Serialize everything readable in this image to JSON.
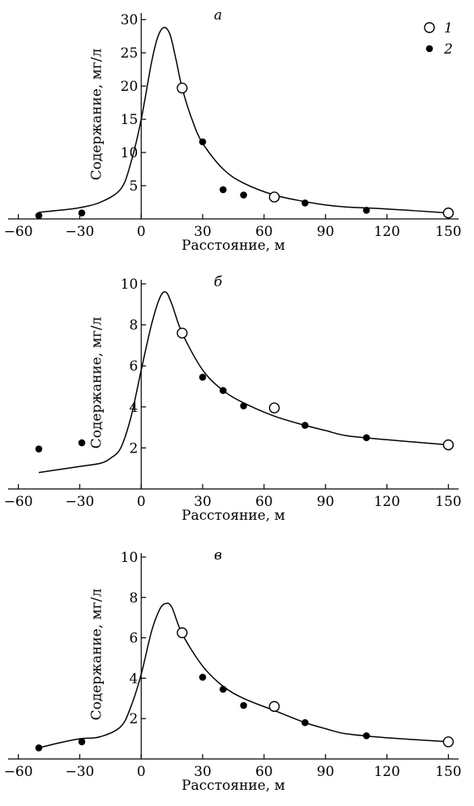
{
  "chart_data": [
    {
      "type": "line",
      "panel_label": "а",
      "xlabel": "Расстояние, м",
      "ylabel": "Содержание, мг/л",
      "xlim": [
        -65,
        155
      ],
      "ylim": [
        0,
        31
      ],
      "xticks": [
        -60,
        -30,
        0,
        30,
        60,
        90,
        120,
        150
      ],
      "xticklabels": [
        "−60",
        "−30",
        "0",
        "30",
        "60",
        "90",
        "120",
        "150"
      ],
      "yticks": [
        5,
        10,
        15,
        20,
        25,
        30
      ],
      "yticklabels": [
        "5",
        "10",
        "15",
        "20",
        "25",
        "30"
      ],
      "legend": [
        {
          "marker": "open-circle",
          "label": "1"
        },
        {
          "marker": "filled-circle",
          "label": "2"
        }
      ],
      "legend_position": "top-right",
      "series": [
        {
          "marker": "open-circle",
          "label": "1",
          "x": [
            20,
            65,
            150
          ],
          "y": [
            19.7,
            3.3,
            0.9
          ]
        },
        {
          "marker": "filled-circle",
          "label": "2",
          "x": [
            -50,
            -29,
            30,
            40,
            50,
            80,
            110
          ],
          "y": [
            0.5,
            0.9,
            11.6,
            4.4,
            3.6,
            2.4,
            1.3
          ]
        }
      ],
      "curve": {
        "x": [
          -50,
          -40,
          -30,
          -20,
          -10,
          -5,
          0,
          5,
          8,
          11,
          14,
          17,
          20,
          25,
          30,
          40,
          50,
          65,
          80,
          90,
          100,
          120,
          150
        ],
        "y": [
          1.0,
          1.3,
          1.7,
          2.5,
          4.5,
          8.5,
          15.0,
          23.5,
          27.3,
          28.8,
          27.8,
          24.0,
          19.7,
          14.8,
          11.4,
          7.5,
          5.4,
          3.6,
          2.6,
          2.1,
          1.8,
          1.5,
          0.9
        ]
      }
    },
    {
      "type": "line",
      "panel_label": "б",
      "xlabel": "Расстояние, м",
      "ylabel": "Содержание, мг/л",
      "xlim": [
        -65,
        155
      ],
      "ylim": [
        0,
        10.2
      ],
      "xticks": [
        -60,
        -30,
        0,
        30,
        60,
        90,
        120,
        150
      ],
      "xticklabels": [
        "−60",
        "−30",
        "0",
        "30",
        "60",
        "90",
        "120",
        "150"
      ],
      "yticks": [
        2,
        4,
        6,
        8,
        10
      ],
      "yticklabels": [
        "2",
        "4",
        "6",
        "8",
        "10"
      ],
      "series": [
        {
          "marker": "open-circle",
          "label": "1",
          "x": [
            20,
            65,
            150
          ],
          "y": [
            7.6,
            3.95,
            2.15
          ]
        },
        {
          "marker": "filled-circle",
          "label": "2",
          "x": [
            -50,
            -29,
            30,
            40,
            50,
            80,
            110
          ],
          "y": [
            1.95,
            2.25,
            5.45,
            4.8,
            4.05,
            3.1,
            2.5
          ]
        }
      ],
      "curve": {
        "x": [
          -50,
          -40,
          -30,
          -20,
          -15,
          -10,
          -5,
          0,
          5,
          9,
          12,
          15,
          20,
          30,
          40,
          50,
          65,
          80,
          90,
          100,
          120,
          150
        ],
        "y": [
          0.8,
          0.95,
          1.1,
          1.25,
          1.5,
          2.0,
          3.5,
          5.8,
          8.0,
          9.3,
          9.6,
          9.0,
          7.6,
          5.8,
          4.8,
          4.2,
          3.55,
          3.1,
          2.85,
          2.6,
          2.4,
          2.15
        ]
      }
    },
    {
      "type": "line",
      "panel_label": "в",
      "xlabel": "Расстояние, м",
      "ylabel": "Содержание, мг/л",
      "xlim": [
        -65,
        155
      ],
      "ylim": [
        0,
        10.2
      ],
      "xticks": [
        -60,
        -30,
        0,
        30,
        60,
        90,
        120,
        150
      ],
      "xticklabels": [
        "−60",
        "−30",
        "0",
        "30",
        "60",
        "90",
        "120",
        "150"
      ],
      "yticks": [
        2,
        4,
        6,
        8,
        10
      ],
      "yticklabels": [
        "2",
        "4",
        "6",
        "8",
        "10"
      ],
      "series": [
        {
          "marker": "open-circle",
          "label": "1",
          "x": [
            20,
            65,
            150
          ],
          "y": [
            6.25,
            2.6,
            0.85
          ]
        },
        {
          "marker": "filled-circle",
          "label": "2",
          "x": [
            -50,
            -29,
            30,
            40,
            50,
            80,
            110
          ],
          "y": [
            0.55,
            0.85,
            4.05,
            3.45,
            2.65,
            1.8,
            1.15
          ]
        }
      ],
      "curve": {
        "x": [
          -50,
          -40,
          -30,
          -20,
          -10,
          -5,
          0,
          5,
          9,
          12,
          15,
          20,
          30,
          40,
          50,
          65,
          80,
          90,
          100,
          120,
          150
        ],
        "y": [
          0.55,
          0.8,
          1.0,
          1.1,
          1.6,
          2.6,
          4.2,
          6.3,
          7.4,
          7.7,
          7.5,
          6.2,
          4.6,
          3.6,
          3.0,
          2.4,
          1.8,
          1.5,
          1.25,
          1.05,
          0.85
        ]
      }
    }
  ]
}
